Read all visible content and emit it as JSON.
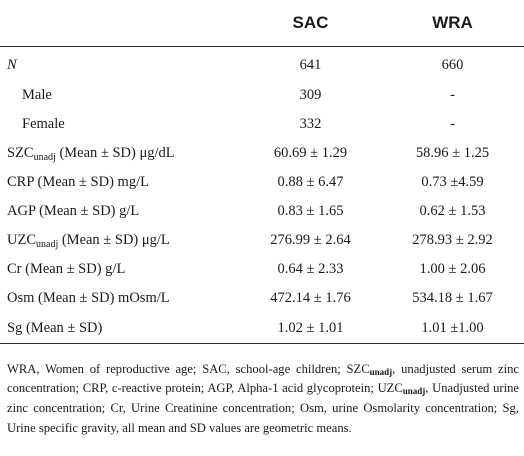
{
  "table": {
    "columns": [
      "",
      "SAC",
      "WRA"
    ],
    "rows": [
      {
        "label": "N",
        "sac": "641",
        "wra": "660"
      },
      {
        "label": "Male",
        "sac": "309",
        "wra": "-"
      },
      {
        "label": "Female",
        "sac": "332",
        "wra": "-"
      },
      {
        "label_main": "SZC",
        "label_sub": "unadj",
        "label_rest": " (Mean ± SD) μg/dL",
        "sac": "60.69 ± 1.29",
        "wra": "58.96 ± 1.25"
      },
      {
        "label": "CRP (Mean ± SD) mg/L",
        "sac": "0.88 ± 6.47",
        "wra": "0.73 ±4.59"
      },
      {
        "label": "AGP (Mean ± SD) g/L",
        "sac": "0.83 ± 1.65",
        "wra": "0.62 ± 1.53"
      },
      {
        "label_main": "UZC",
        "label_sub": "unadj",
        "label_rest": " (Mean ± SD) μg/L",
        "sac": "276.99 ± 2.64",
        "wra": "278.93 ± 2.92"
      },
      {
        "label": "Cr (Mean ± SD) g/L",
        "sac": "0.64 ± 2.33",
        "wra": "1.00 ± 2.06"
      },
      {
        "label": "Osm (Mean ± SD) mOsm/L",
        "sac": "472.14 ± 1.76",
        "wra": "534.18 ± 1.67"
      },
      {
        "label": "Sg (Mean ± SD)",
        "sac": "1.02 ± 1.01",
        "wra": "1.01 ±1.00"
      }
    ]
  },
  "footnote": {
    "p1": "WRA, Women of reproductive age; SAC, school-age children; SZC",
    "sub1": "unadj",
    "p2": ", unadjusted serum zinc concentration; CRP, c-reactive protein; AGP, Alpha-1 acid glycoprotein; UZC",
    "sub2": "unadj",
    "p3": ", Unadjusted urine zinc concentration; Cr, Urine Creatinine concentration; Osm, urine Osmolarity concentration; Sg, Urine specific gravity, all mean and SD values are geometric means."
  }
}
